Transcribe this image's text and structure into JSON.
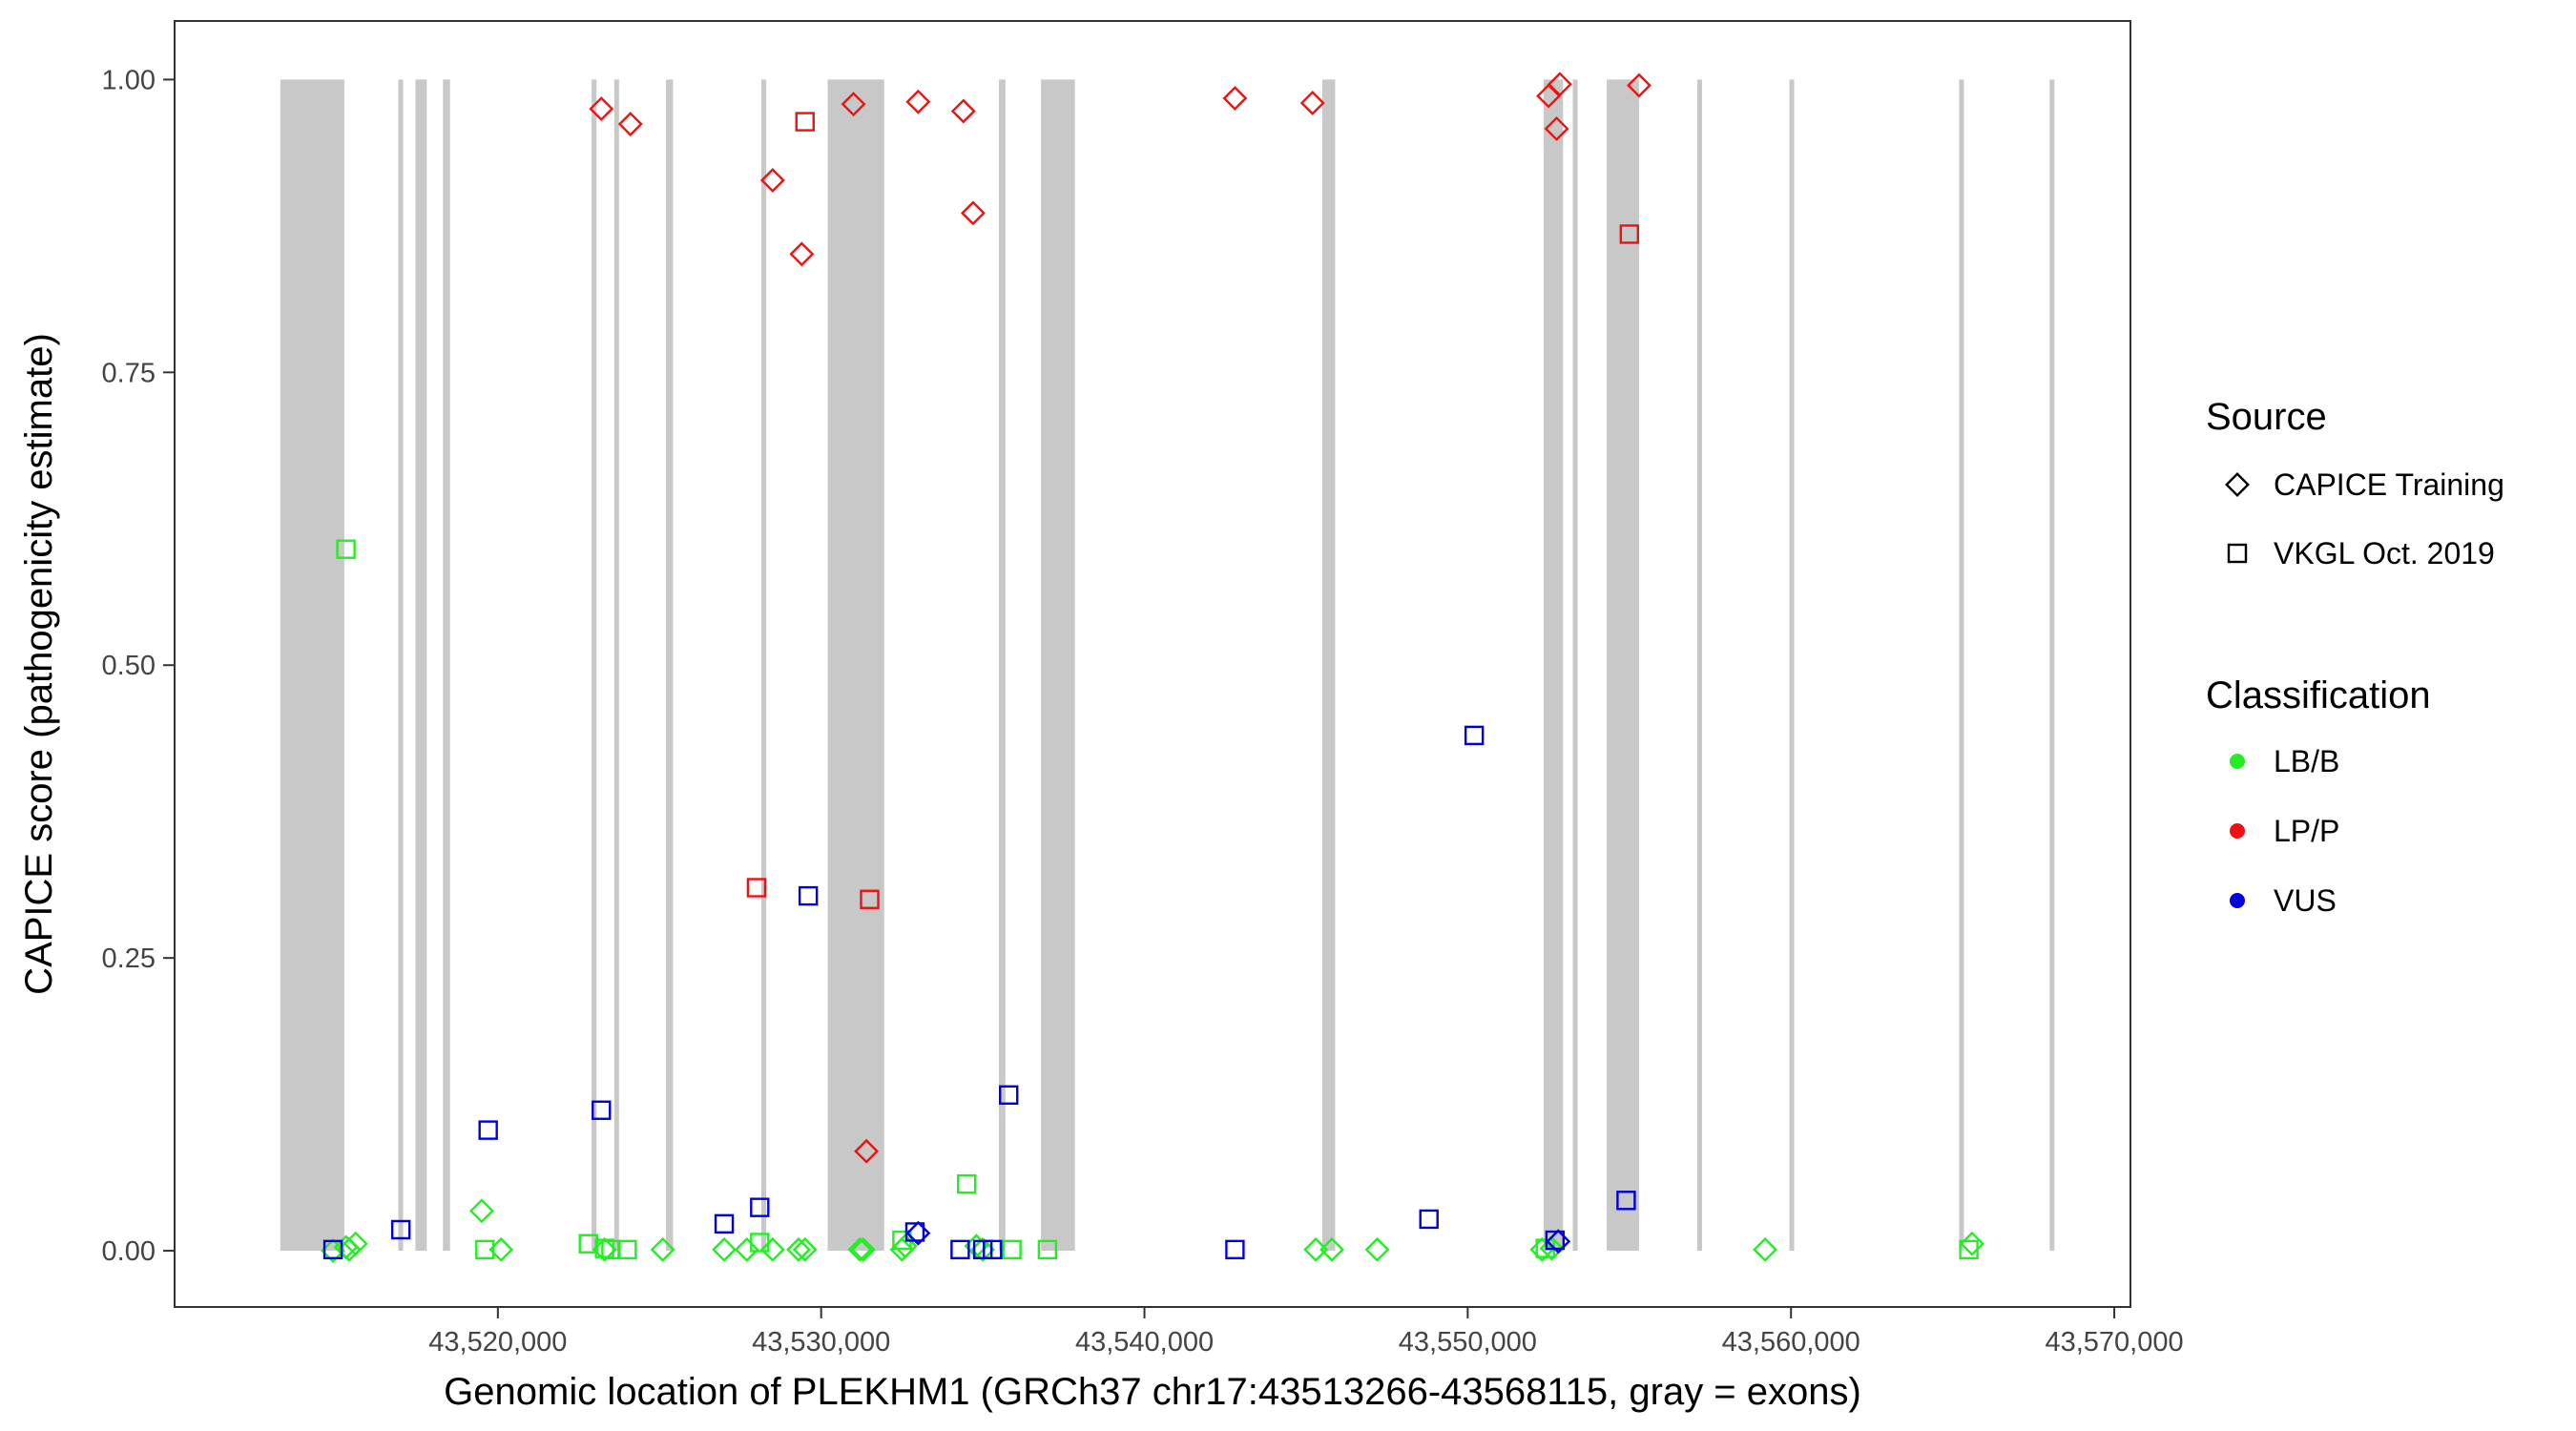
{
  "chart_data": {
    "type": "scatter",
    "xlabel": "Genomic location of PLEKHM1 (GRCh37 chr17:43513266-43568115, gray = exons)",
    "ylabel": "CAPICE score (pathogenicity estimate)",
    "xlim": [
      43510000,
      43570500
    ],
    "ylim": [
      -0.048,
      1.05
    ],
    "x_ticks": [
      43520000,
      43530000,
      43540000,
      43550000,
      43560000,
      43570000
    ],
    "x_tick_labels": [
      "43,520,000",
      "43,530,000",
      "43,540,000",
      "43,550,000",
      "43,560,000",
      "43,570,000"
    ],
    "y_ticks": [
      0,
      0.25,
      0.5,
      0.75,
      1
    ],
    "y_tick_labels": [
      "0.00",
      "0.25",
      "0.50",
      "0.75",
      "1.00"
    ],
    "grid": false,
    "exons": [
      [
        43513270,
        43515250
      ],
      [
        43516920,
        43517050
      ],
      [
        43517450,
        43517800
      ],
      [
        43518300,
        43518520
      ],
      [
        43522900,
        43523050
      ],
      [
        43523600,
        43523720
      ],
      [
        43525200,
        43525420
      ],
      [
        43528150,
        43528300
      ],
      [
        43530200,
        43531950
      ],
      [
        43535500,
        43535700
      ],
      [
        43536800,
        43537850
      ],
      [
        43545500,
        43545900
      ],
      [
        43552350,
        43552950
      ],
      [
        43553250,
        43553400
      ],
      [
        43554300,
        43555300
      ],
      [
        43557100,
        43557200
      ],
      [
        43559950,
        43560070
      ],
      [
        43565200,
        43565320
      ],
      [
        43568000,
        43568120
      ]
    ],
    "exon_color": "#c8c8c8",
    "legend": {
      "placement": "right",
      "source_title": "Source",
      "source_entries": [
        {
          "label": "CAPICE Training",
          "shape": "diamond"
        },
        {
          "label": "VKGL Oct. 2019",
          "shape": "square"
        }
      ],
      "class_title": "Classification",
      "class_entries": [
        {
          "label": "LB/B",
          "color": "#22ee22"
        },
        {
          "label": "LP/P",
          "color": "#ee1111"
        },
        {
          "label": "VUS",
          "color": "#0000dd"
        }
      ]
    },
    "series": [
      {
        "source": "CAPICE Training",
        "classification": "LP/P",
        "points": [
          [
            43523200,
            0.975
          ],
          [
            43524100,
            0.962
          ],
          [
            43528500,
            0.914
          ],
          [
            43529400,
            0.851
          ],
          [
            43531000,
            0.979
          ],
          [
            43533000,
            0.981
          ],
          [
            43534400,
            0.973
          ],
          [
            43534700,
            0.886
          ],
          [
            43542800,
            0.984
          ],
          [
            43545200,
            0.98
          ],
          [
            43552500,
            0.986
          ],
          [
            43552850,
            0.996
          ],
          [
            43552750,
            0.958
          ],
          [
            43555300,
            0.995
          ],
          [
            43531400,
            0.085
          ]
        ]
      },
      {
        "source": "VKGL Oct. 2019",
        "classification": "LP/P",
        "points": [
          [
            43529500,
            0.964
          ],
          [
            43528000,
            0.31
          ],
          [
            43531500,
            0.3
          ],
          [
            43555000,
            0.868
          ]
        ]
      },
      {
        "source": "CAPICE Training",
        "classification": "LB/B",
        "points": [
          [
            43514900,
            0.0
          ],
          [
            43515300,
            0.003
          ],
          [
            43515600,
            0.006
          ],
          [
            43515400,
            0.001
          ],
          [
            43519500,
            0.034
          ],
          [
            43520100,
            0.001
          ],
          [
            43523300,
            0.001
          ],
          [
            43525100,
            0.001
          ],
          [
            43527000,
            0.001
          ],
          [
            43527700,
            0.001
          ],
          [
            43528500,
            0.001
          ],
          [
            43529500,
            0.001
          ],
          [
            43529300,
            0.001
          ],
          [
            43531200,
            0.001
          ],
          [
            43531300,
            0.001
          ],
          [
            43532500,
            0.001
          ],
          [
            43532600,
            0.004
          ],
          [
            43534800,
            0.004
          ],
          [
            43535000,
            0.001
          ],
          [
            43545300,
            0.001
          ],
          [
            43545800,
            0.001
          ],
          [
            43547200,
            0.001
          ],
          [
            43552300,
            0.001
          ],
          [
            43552600,
            0.002
          ],
          [
            43559200,
            0.001
          ],
          [
            43565600,
            0.006
          ]
        ]
      },
      {
        "source": "VKGL Oct. 2019",
        "classification": "LB/B",
        "points": [
          [
            43515300,
            0.599
          ],
          [
            43519600,
            0.001
          ],
          [
            43522800,
            0.006
          ],
          [
            43523300,
            0.002
          ],
          [
            43523500,
            0.001
          ],
          [
            43524000,
            0.001
          ],
          [
            43528100,
            0.007
          ],
          [
            43532500,
            0.009
          ],
          [
            43534500,
            0.057
          ],
          [
            43535000,
            0.001
          ],
          [
            43535900,
            0.001
          ],
          [
            43537000,
            0.001
          ],
          [
            43552400,
            0.002
          ],
          [
            43565500,
            0.001
          ]
        ]
      },
      {
        "source": "VKGL Oct. 2019",
        "classification": "VUS",
        "points": [
          [
            43514900,
            0.001
          ],
          [
            43517000,
            0.018
          ],
          [
            43519700,
            0.103
          ],
          [
            43523200,
            0.12
          ],
          [
            43527000,
            0.023
          ],
          [
            43528100,
            0.037
          ],
          [
            43529600,
            0.303
          ],
          [
            43532900,
            0.016
          ],
          [
            43534300,
            0.001
          ],
          [
            43535000,
            0.001
          ],
          [
            43535300,
            0.001
          ],
          [
            43535800,
            0.133
          ],
          [
            43542800,
            0.001
          ],
          [
            43548800,
            0.027
          ],
          [
            43550200,
            0.44
          ],
          [
            43552700,
            0.009
          ],
          [
            43554900,
            0.043
          ]
        ]
      },
      {
        "source": "CAPICE Training",
        "classification": "VUS",
        "points": [
          [
            43533000,
            0.015
          ],
          [
            43552800,
            0.008
          ]
        ]
      }
    ]
  }
}
